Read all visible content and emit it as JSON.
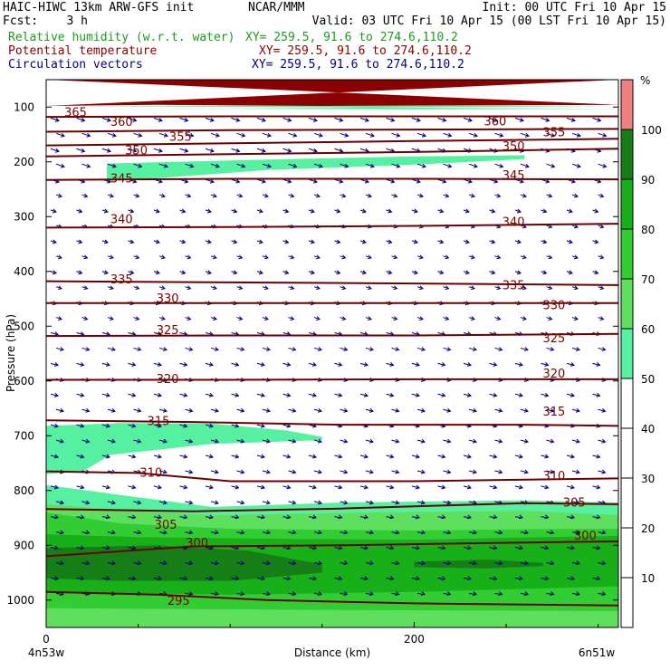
{
  "header": {
    "line1_left": "HAIC-HIWC 13km ARW-GFS init",
    "line1_mid": "NCAR/MMM",
    "line1_right": "Init: 00 UTC Fri 10 Apr 15",
    "line2_left": "Fcst:    3 h",
    "line2_right": "Valid: 03 UTC Fri 10 Apr 15 (00 LST Fri 10 Apr 15)",
    "field1_name": "Relative humidity (w.r.t. water)",
    "field1_xy": "XY= 259.5, 91.6 to 274.6,110.2",
    "field2_name": "Potential temperature",
    "field2_xy": "XY= 259.5, 91.6 to 274.6,110.2",
    "field3_name": "Circulation vectors",
    "field3_xy": "XY= 259.5, 91.6 to 274.6,110.2",
    "colors": {
      "field1": "#1a9b1a",
      "field2": "#8b0000",
      "field3": "#000080"
    }
  },
  "chart_data": {
    "type": "heatmap",
    "title": "",
    "xlabel": "Distance (km)",
    "ylabel": "Pressure (hPa)",
    "x_ticks": [
      "0",
      "200"
    ],
    "x_end_labels": {
      "left": "4n53w",
      "right": "6n51w"
    },
    "xlim": [
      0,
      311
    ],
    "y_ticks": [
      100,
      200,
      300,
      400,
      500,
      600,
      700,
      800,
      900,
      1000
    ],
    "ylim": [
      1050,
      50
    ],
    "colorbar": {
      "unit": "%",
      "ticks": [
        10,
        20,
        30,
        40,
        50,
        60,
        70,
        80,
        90,
        100
      ],
      "levels": [
        {
          "from": 0,
          "to": 50,
          "color": "#ffffff"
        },
        {
          "from": 50,
          "to": 60,
          "color": "#55f0a0"
        },
        {
          "from": 60,
          "to": 70,
          "color": "#5ee05e"
        },
        {
          "from": 70,
          "to": 80,
          "color": "#32cd32"
        },
        {
          "from": 80,
          "to": 90,
          "color": "#18b018"
        },
        {
          "from": 90,
          "to": 100,
          "color": "#167e16"
        },
        {
          "from": 100,
          "to": 110,
          "color": "#f08080"
        }
      ]
    },
    "rh_regions": [
      {
        "level": 100,
        "color": "#8b0000",
        "top": [
          [
            0,
            50
          ],
          [
            311,
            50
          ]
        ],
        "bottom": [
          [
            0,
            98
          ],
          [
            60,
            96
          ],
          [
            150,
            98
          ],
          [
            311,
            96
          ]
        ]
      },
      {
        "level": 55,
        "color": "#55f0a0",
        "top": [
          [
            0,
            98
          ],
          [
            311,
            98
          ]
        ],
        "bottom": [
          [
            0,
            105
          ],
          [
            100,
            103
          ],
          [
            200,
            104
          ],
          [
            311,
            103
          ]
        ]
      },
      {
        "level": 55,
        "color": "#55f0a0",
        "top": [
          [
            33,
            203
          ],
          [
            120,
            196
          ],
          [
            200,
            190
          ],
          [
            260,
            188
          ]
        ],
        "bottom": [
          [
            260,
            195
          ],
          [
            200,
            205
          ],
          [
            120,
            215
          ],
          [
            60,
            230
          ],
          [
            33,
            235
          ]
        ]
      },
      {
        "level": 55,
        "color": "#55f0a0",
        "top": [
          [
            0,
            682
          ],
          [
            40,
            677
          ],
          [
            90,
            678
          ],
          [
            130,
            690
          ],
          [
            150,
            702
          ]
        ],
        "bottom": [
          [
            150,
            708
          ],
          [
            90,
            715
          ],
          [
            35,
            735
          ],
          [
            20,
            765
          ],
          [
            0,
            770
          ]
        ]
      },
      {
        "level": 55,
        "color": "#55f0a0",
        "top": [
          [
            0,
            790
          ],
          [
            40,
            808
          ],
          [
            90,
            830
          ],
          [
            160,
            822
          ],
          [
            260,
            818
          ],
          [
            311,
            822
          ]
        ],
        "bottom": [
          [
            311,
            1050
          ],
          [
            0,
            1050
          ]
        ]
      },
      {
        "level": 65,
        "color": "#5ee05e",
        "top": [
          [
            0,
            825
          ],
          [
            40,
            836
          ],
          [
            90,
            845
          ],
          [
            180,
            840
          ],
          [
            260,
            837
          ],
          [
            311,
            845
          ]
        ],
        "bottom": [
          [
            311,
            1050
          ],
          [
            0,
            1050
          ]
        ]
      },
      {
        "level": 75,
        "color": "#32cd32",
        "top": [
          [
            0,
            840
          ],
          [
            40,
            860
          ],
          [
            100,
            870
          ],
          [
            200,
            873
          ],
          [
            280,
            870
          ],
          [
            311,
            870
          ]
        ],
        "bottom": [
          [
            311,
            1020
          ],
          [
            150,
            1018
          ],
          [
            0,
            1015
          ]
        ]
      },
      {
        "level": 85,
        "color": "#18b018",
        "top": [
          [
            0,
            880
          ],
          [
            50,
            885
          ],
          [
            120,
            888
          ],
          [
            200,
            890
          ],
          [
            270,
            885
          ],
          [
            311,
            883
          ]
        ],
        "bottom": [
          [
            311,
            975
          ],
          [
            200,
            985
          ],
          [
            100,
            990
          ],
          [
            0,
            985
          ]
        ]
      },
      {
        "level": 95,
        "color": "#167e16",
        "top": [
          [
            0,
            905
          ],
          [
            60,
            900
          ],
          [
            110,
            910
          ],
          [
            150,
            935
          ]
        ],
        "bottom": [
          [
            150,
            950
          ],
          [
            100,
            965
          ],
          [
            40,
            965
          ],
          [
            0,
            960
          ]
        ]
      },
      {
        "level": 95,
        "color": "#167e16",
        "top": [
          [
            200,
            930
          ],
          [
            240,
            926
          ],
          [
            270,
            932
          ]
        ],
        "bottom": [
          [
            270,
            938
          ],
          [
            240,
            942
          ],
          [
            200,
            940
          ]
        ]
      }
    ],
    "theta_contours": [
      {
        "value": 295,
        "label_at": [
          72,
          1002
        ],
        "points": [
          [
            0,
            985
          ],
          [
            60,
            990
          ],
          [
            120,
            1000
          ],
          [
            200,
            1006
          ],
          [
            311,
            1010
          ]
        ]
      },
      {
        "value": 300,
        "label_at": [
          82,
          896
        ],
        "points": [
          [
            0,
            920
          ],
          [
            80,
            902
          ],
          [
            160,
            900
          ],
          [
            260,
            895
          ],
          [
            311,
            893
          ]
        ]
      },
      {
        "value": 305,
        "label_at": [
          65,
          863
        ],
        "points": [
          [
            0,
            834
          ],
          [
            80,
            838
          ],
          [
            160,
            833
          ],
          [
            260,
            823
          ],
          [
            311,
            825
          ]
        ]
      },
      {
        "value": 310,
        "label_at": [
          57,
          768
        ],
        "points": [
          [
            0,
            765
          ],
          [
            50,
            768
          ],
          [
            100,
            783
          ],
          [
            200,
            783
          ],
          [
            311,
            778
          ]
        ]
      },
      {
        "value": 315,
        "label_at": [
          61,
          674
        ],
        "points": [
          [
            0,
            672
          ],
          [
            80,
            675
          ],
          [
            160,
            680
          ],
          [
            260,
            680
          ],
          [
            311,
            682
          ]
        ]
      },
      {
        "value": 320,
        "label_at": [
          66,
          597
        ],
        "points": [
          [
            0,
            598
          ],
          [
            100,
            598
          ],
          [
            200,
            597
          ],
          [
            311,
            597
          ]
        ]
      },
      {
        "value": 325,
        "label_at": [
          66,
          508
        ],
        "points": [
          [
            0,
            518
          ],
          [
            100,
            517
          ],
          [
            200,
            517
          ],
          [
            311,
            514
          ]
        ]
      },
      {
        "value": 330,
        "label_at": [
          66,
          450
        ],
        "points": [
          [
            0,
            458
          ],
          [
            100,
            458
          ],
          [
            200,
            458
          ],
          [
            311,
            458
          ]
        ]
      },
      {
        "value": 335,
        "label_at": [
          41,
          415
        ],
        "points": [
          [
            0,
            418
          ],
          [
            100,
            420
          ],
          [
            200,
            422
          ],
          [
            311,
            425
          ]
        ]
      },
      {
        "value": 340,
        "label_at": [
          41,
          305
        ],
        "points": [
          [
            0,
            320
          ],
          [
            100,
            319
          ],
          [
            200,
            317
          ],
          [
            311,
            313
          ]
        ]
      },
      {
        "value": 345,
        "label_at": [
          41,
          231
        ],
        "points": [
          [
            0,
            233
          ],
          [
            100,
            231
          ],
          [
            200,
            231
          ],
          [
            311,
            232
          ]
        ]
      },
      {
        "value": 350,
        "label_at": [
          49,
          180
        ],
        "points": [
          [
            0,
            190
          ],
          [
            100,
            186
          ],
          [
            200,
            182
          ],
          [
            311,
            176
          ]
        ]
      },
      {
        "value": 355,
        "label_at": [
          73,
          155
        ],
        "points": [
          [
            0,
            170
          ],
          [
            100,
            166
          ],
          [
            200,
            162
          ],
          [
            311,
            158
          ]
        ]
      },
      {
        "value": 360,
        "label_at": [
          41,
          128
        ],
        "points": [
          [
            0,
            145
          ],
          [
            100,
            142
          ],
          [
            200,
            141
          ],
          [
            311,
            140
          ]
        ]
      },
      {
        "value": 365,
        "label_at": [
          16,
          110
        ],
        "points": [
          [
            0,
            118
          ],
          [
            100,
            117
          ],
          [
            200,
            117
          ],
          [
            311,
            117
          ]
        ]
      }
    ],
    "theta_extra_labels": [
      {
        "value": 360,
        "at": [
          244,
          127
        ]
      },
      {
        "value": 355,
        "at": [
          276,
          147
        ]
      },
      {
        "value": 350,
        "at": [
          254,
          172
        ]
      },
      {
        "value": 345,
        "at": [
          254,
          225
        ]
      },
      {
        "value": 340,
        "at": [
          254,
          310
        ]
      },
      {
        "value": 335,
        "at": [
          254,
          426
        ]
      },
      {
        "value": 330,
        "at": [
          276,
          462
        ]
      },
      {
        "value": 325,
        "at": [
          276,
          523
        ]
      },
      {
        "value": 320,
        "at": [
          276,
          587
        ]
      },
      {
        "value": 315,
        "at": [
          276,
          657
        ]
      },
      {
        "value": 310,
        "at": [
          276,
          774
        ]
      },
      {
        "value": 305,
        "at": [
          287,
          823
        ]
      },
      {
        "value": 300,
        "at": [
          293,
          883
        ]
      }
    ]
  }
}
